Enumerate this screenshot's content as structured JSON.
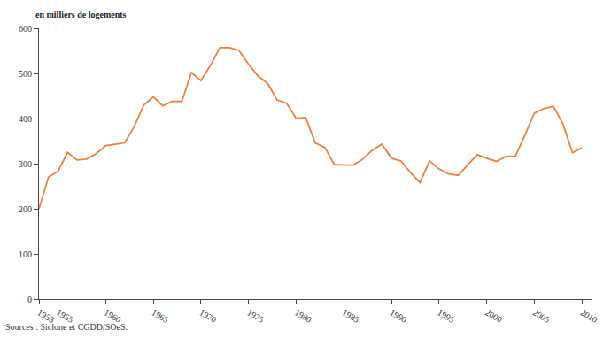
{
  "chart_data": {
    "type": "line",
    "ylabel": "en milliers de logements",
    "source": "Sources : Siclone et CGDD/SOeS.",
    "color": "#f07f3c",
    "grid": false,
    "x": [
      1953,
      1954,
      1955,
      1956,
      1957,
      1958,
      1959,
      1960,
      1961,
      1962,
      1963,
      1964,
      1965,
      1966,
      1967,
      1968,
      1969,
      1970,
      1971,
      1972,
      1973,
      1974,
      1975,
      1976,
      1977,
      1978,
      1979,
      1980,
      1981,
      1982,
      1983,
      1984,
      1985,
      1986,
      1987,
      1988,
      1989,
      1990,
      1991,
      1992,
      1993,
      1994,
      1995,
      1996,
      1997,
      1998,
      1999,
      2000,
      2001,
      2002,
      2003,
      2004,
      2005,
      2006,
      2007,
      2008,
      2009,
      2010
    ],
    "values": [
      200,
      270,
      283,
      325,
      308,
      310,
      322,
      340,
      343,
      346,
      382,
      430,
      448,
      428,
      438,
      438,
      502,
      484,
      518,
      557,
      557,
      551,
      520,
      494,
      478,
      441,
      434,
      400,
      402,
      346,
      336,
      298,
      297,
      297,
      310,
      330,
      343,
      312,
      306,
      280,
      258,
      306,
      288,
      277,
      274,
      296,
      320,
      312,
      305,
      316,
      316,
      363,
      412,
      422,
      427,
      388,
      324,
      335
    ],
    "xlim": [
      1953,
      2011
    ],
    "xticks": [
      1953,
      1955,
      1960,
      1965,
      1970,
      1975,
      1980,
      1985,
      1990,
      1995,
      2000,
      2005,
      2010
    ],
    "ylim": [
      0,
      600
    ],
    "yticks": [
      0,
      100,
      200,
      300,
      400,
      500,
      600
    ]
  }
}
